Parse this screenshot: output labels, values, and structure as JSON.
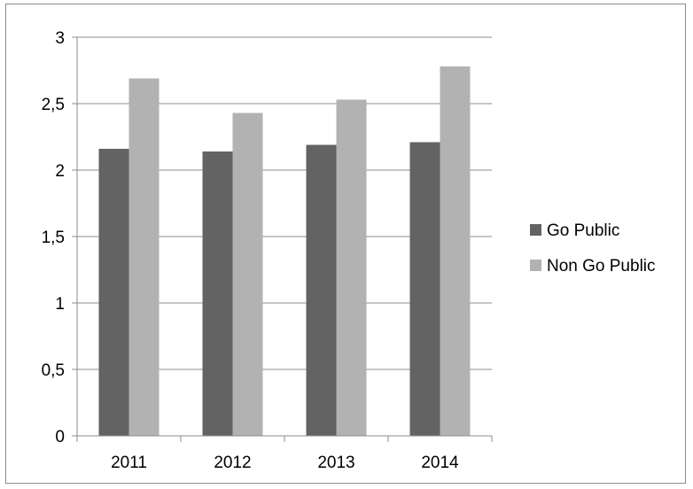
{
  "chart_data": {
    "type": "bar",
    "title": "",
    "xlabel": "",
    "ylabel": "",
    "categories": [
      "2011",
      "2012",
      "2013",
      "2014"
    ],
    "series": [
      {
        "name": "Go Public",
        "values": [
          2.16,
          2.14,
          2.19,
          2.21
        ],
        "color": "#636363"
      },
      {
        "name": "Non Go Public",
        "values": [
          2.69,
          2.43,
          2.53,
          2.78
        ],
        "color": "#b2b2b2"
      }
    ],
    "ylim": [
      0,
      3
    ],
    "yticks": [
      0,
      0.5,
      1,
      1.5,
      2,
      2.5,
      3
    ],
    "ytick_labels": [
      "0",
      "0,5",
      "1",
      "1,5",
      "2",
      "2,5",
      "3"
    ],
    "grid": true,
    "legend_position": "right"
  }
}
